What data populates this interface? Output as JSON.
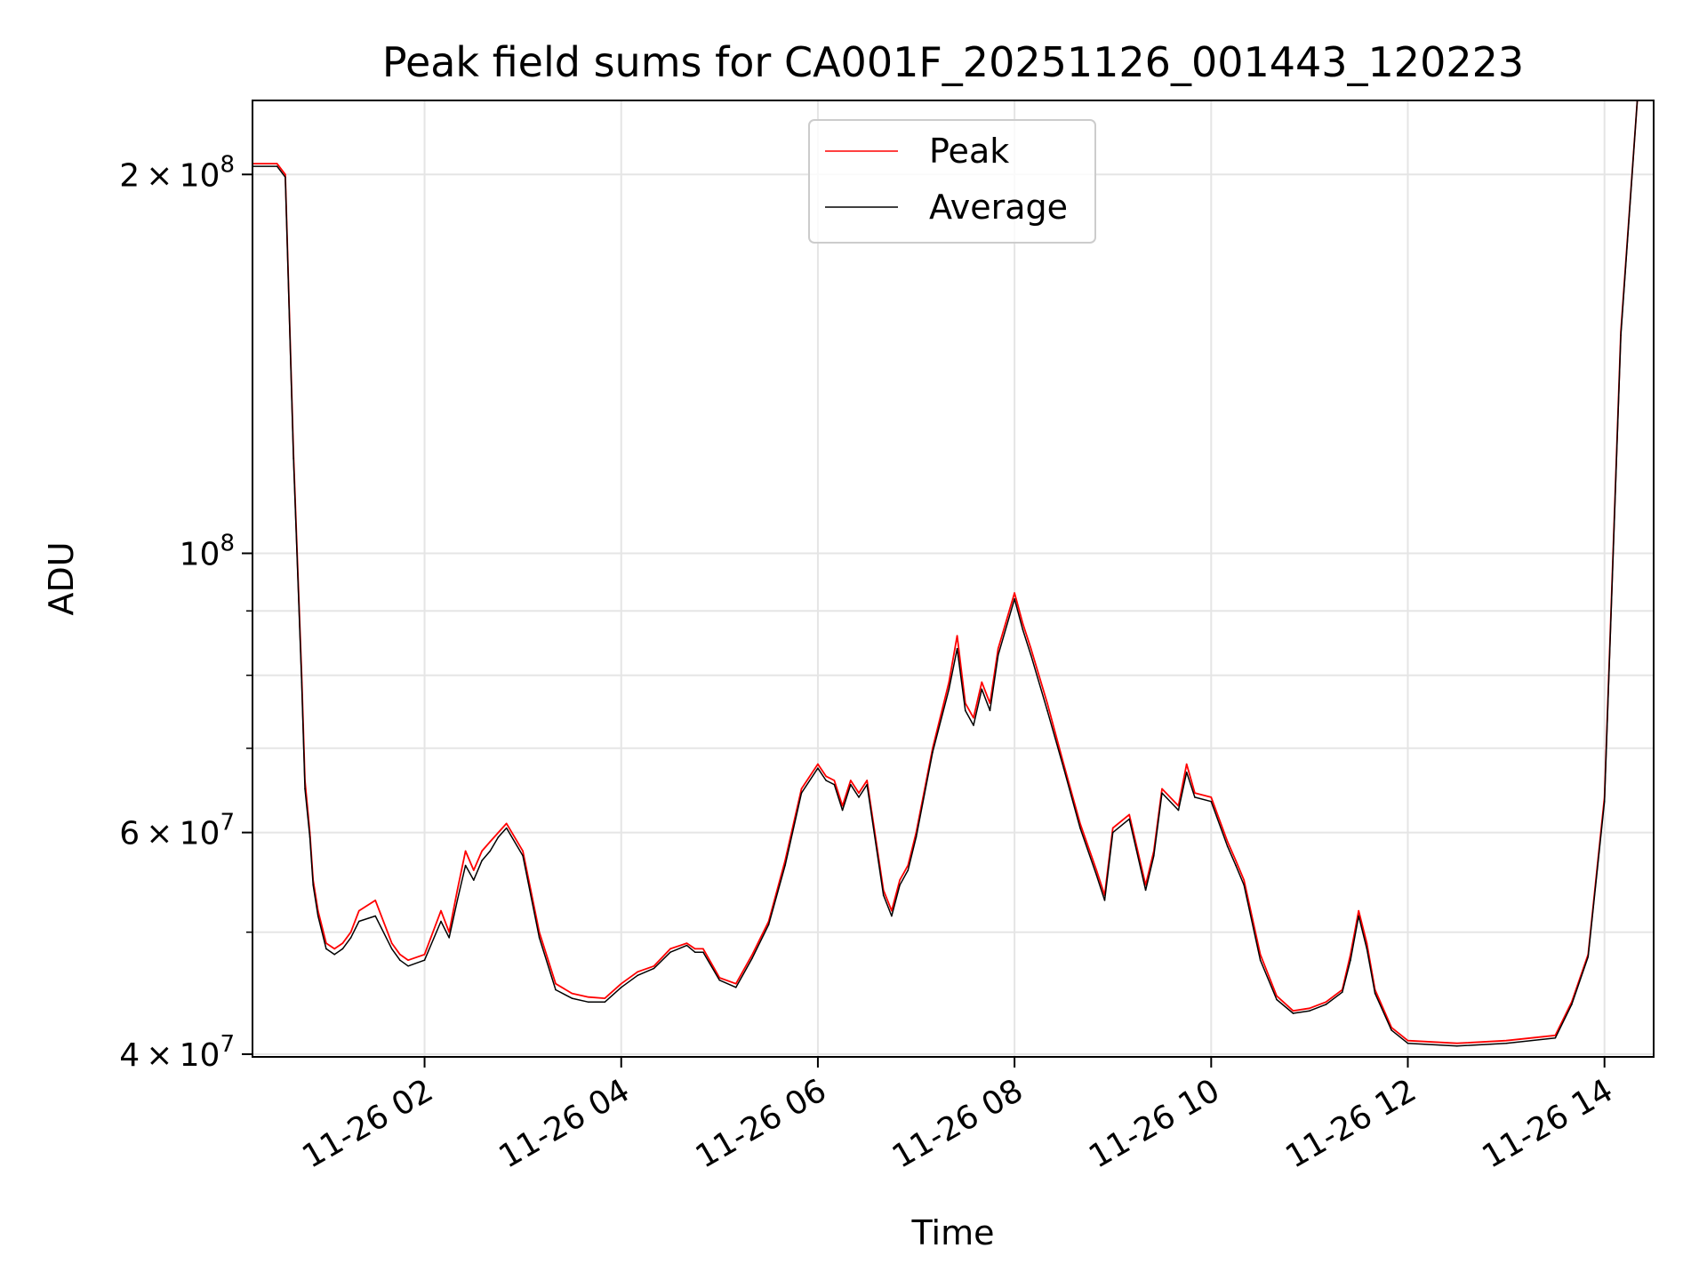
{
  "chart_data": {
    "type": "line",
    "title": "Peak field sums for CA001F_20251126_001443_120223",
    "xlabel": "Time",
    "ylabel": "ADU",
    "yscale": "log",
    "ylim": [
      39800000,
      229000000
    ],
    "xlim": [
      "2025-11-26 00:15",
      "2025-11-26 14:30"
    ],
    "grid": true,
    "legend": "upper center",
    "x_ticks": [
      "11-26 02",
      "11-26 04",
      "11-26 06",
      "11-26 08",
      "11-26 10",
      "11-26 12",
      "11-26 14"
    ],
    "y_ticks": [
      {
        "base": "4",
        "exp": "7",
        "value": 40000000
      },
      {
        "base": "6",
        "exp": "7",
        "value": 60000000
      },
      {
        "base": "",
        "exp": "8",
        "value": 100000000
      },
      {
        "base": "2",
        "exp": "8",
        "value": 200000000
      }
    ],
    "y_minor_ticks": [
      50000000,
      70000000,
      80000000,
      90000000
    ],
    "x": [
      "00:15",
      "00:30",
      "00:35",
      "00:40",
      "00:45",
      "00:47",
      "00:50",
      "00:52",
      "00:55",
      "01:00",
      "01:05",
      "01:10",
      "01:15",
      "01:20",
      "01:30",
      "01:40",
      "01:45",
      "01:50",
      "02:00",
      "02:10",
      "02:15",
      "02:20",
      "02:25",
      "02:30",
      "02:35",
      "02:40",
      "02:45",
      "02:50",
      "03:00",
      "03:10",
      "03:20",
      "03:30",
      "03:40",
      "03:50",
      "04:00",
      "04:10",
      "04:20",
      "04:30",
      "04:40",
      "04:45",
      "04:50",
      "05:00",
      "05:10",
      "05:20",
      "05:30",
      "05:40",
      "05:50",
      "06:00",
      "06:05",
      "06:10",
      "06:15",
      "06:20",
      "06:25",
      "06:30",
      "06:40",
      "06:45",
      "06:50",
      "06:55",
      "07:00",
      "07:10",
      "07:20",
      "07:25",
      "07:30",
      "07:35",
      "07:40",
      "07:45",
      "07:50",
      "08:00",
      "08:05",
      "08:10",
      "08:20",
      "08:30",
      "08:40",
      "08:50",
      "08:55",
      "09:00",
      "09:10",
      "09:20",
      "09:25",
      "09:30",
      "09:40",
      "09:45",
      "09:50",
      "10:00",
      "10:10",
      "10:15",
      "10:20",
      "10:30",
      "10:40",
      "10:50",
      "11:00",
      "11:10",
      "11:20",
      "11:25",
      "11:30",
      "11:35",
      "11:40",
      "11:50",
      "12:00",
      "12:30",
      "13:00",
      "13:30",
      "13:40",
      "13:50",
      "14:00",
      "14:10",
      "14:20"
    ],
    "series": [
      {
        "name": "Peak",
        "color": "#ff0000",
        "values": [
          204000000,
          204000000,
          200000000,
          120000000,
          80000000,
          66000000,
          60000000,
          55000000,
          52000000,
          49000000,
          48500000,
          49000000,
          50000000,
          52000000,
          53000000,
          49000000,
          48000000,
          47500000,
          48000000,
          52000000,
          50000000,
          54000000,
          58000000,
          56000000,
          58000000,
          59000000,
          60000000,
          61000000,
          58000000,
          50000000,
          45500000,
          44700000,
          44400000,
          44300000,
          45500000,
          46500000,
          47000000,
          48500000,
          49000000,
          48500000,
          48500000,
          46000000,
          45500000,
          48000000,
          51000000,
          57000000,
          65000000,
          68000000,
          66500000,
          66000000,
          63000000,
          66000000,
          64500000,
          66000000,
          54000000,
          52000000,
          55000000,
          56500000,
          60000000,
          70000000,
          79000000,
          86000000,
          76000000,
          74000000,
          79000000,
          76000000,
          84000000,
          93000000,
          88000000,
          84000000,
          76000000,
          68000000,
          61000000,
          56000000,
          53500000,
          60500000,
          62000000,
          54500000,
          58000000,
          65000000,
          63000000,
          68000000,
          64500000,
          64000000,
          59000000,
          57000000,
          55000000,
          48000000,
          44500000,
          43300000,
          43500000,
          44000000,
          45000000,
          48000000,
          52000000,
          49000000,
          45000000,
          42000000,
          41000000,
          40800000,
          41000000,
          41400000,
          44000000,
          48000000,
          64000000,
          150000000,
          229000000
        ]
      },
      {
        "name": "Average",
        "color": "#000000",
        "values": [
          203000000,
          203000000,
          199000000,
          119000000,
          79000000,
          65000000,
          59500000,
          54500000,
          51500000,
          48500000,
          48000000,
          48500000,
          49500000,
          51000000,
          51500000,
          48500000,
          47500000,
          47000000,
          47500000,
          51000000,
          49500000,
          53000000,
          56500000,
          55000000,
          57000000,
          58000000,
          59500000,
          60500000,
          57500000,
          49500000,
          45000000,
          44300000,
          44000000,
          44000000,
          45200000,
          46200000,
          46800000,
          48200000,
          48800000,
          48200000,
          48200000,
          45800000,
          45200000,
          47700000,
          50700000,
          56500000,
          64500000,
          67500000,
          66000000,
          65500000,
          62500000,
          65500000,
          64000000,
          65500000,
          53500000,
          51500000,
          54500000,
          56000000,
          59500000,
          69500000,
          78000000,
          84000000,
          75000000,
          73000000,
          78000000,
          75000000,
          83000000,
          92000000,
          87000000,
          83000000,
          75000000,
          67500000,
          60500000,
          55500000,
          53000000,
          60000000,
          61500000,
          54000000,
          57500000,
          64500000,
          62500000,
          67000000,
          64000000,
          63500000,
          58500000,
          56500000,
          54500000,
          47500000,
          44200000,
          43100000,
          43300000,
          43800000,
          44800000,
          47500000,
          51500000,
          48500000,
          44700000,
          41800000,
          40800000,
          40600000,
          40800000,
          41200000,
          43800000,
          47800000,
          63500000,
          149000000,
          229000000
        ]
      }
    ]
  }
}
